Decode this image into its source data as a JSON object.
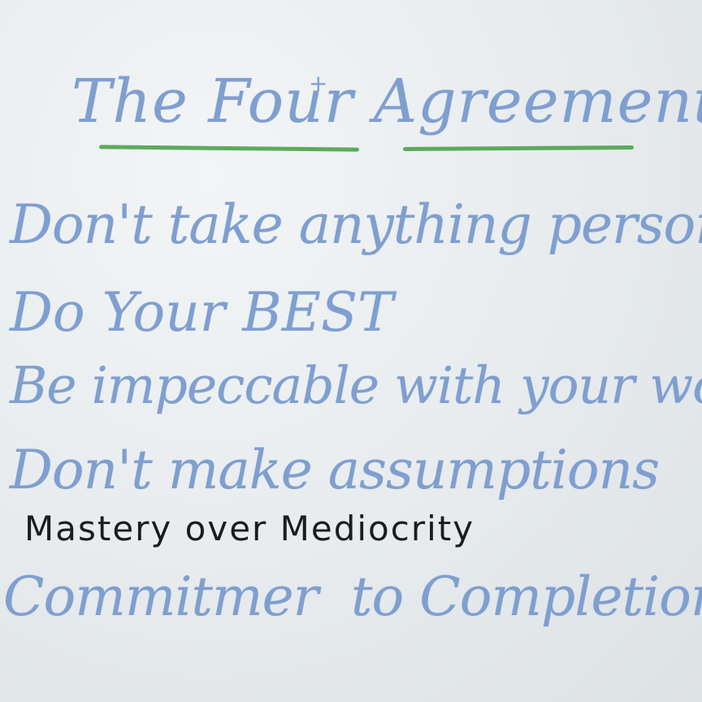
{
  "whiteboard": {
    "title": "The Four Agreements",
    "title_plus": "+",
    "lines": [
      "Don't take anything personally",
      "Do Your BEST",
      "Be impeccable with your words",
      "Don't make assumptions",
      "Mastery over Mediocrity",
      "Commitmer",
      "to Completion"
    ]
  },
  "colors": {
    "marker_blue": "#7f9fd0",
    "marker_black": "#1c1c1c",
    "marker_green": "#4aa34a",
    "board": "#e9edef"
  }
}
